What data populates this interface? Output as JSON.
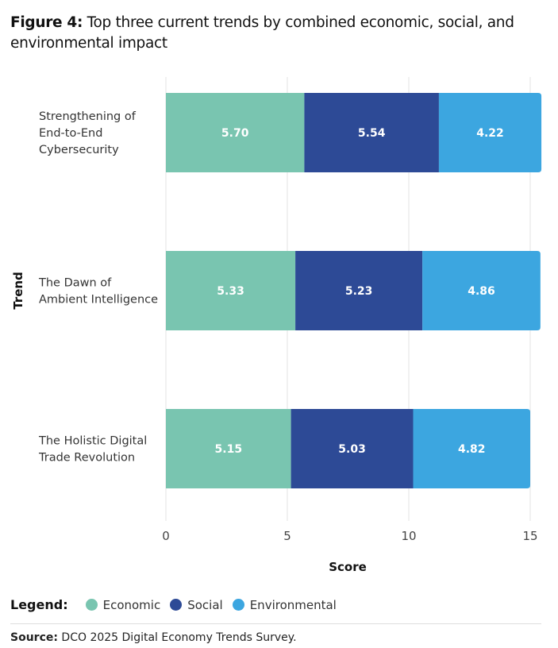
{
  "title_prefix": "Figure 4:",
  "title": "Top three current trends by combined economic, social, and environmental impact",
  "chart_data": {
    "type": "bar",
    "orientation": "horizontal",
    "stacked": true,
    "categories": [
      "Strengthening of End-to-End Cybersecurity",
      "The Dawn of Ambient Intelligence",
      "The Holistic Digital Trade Revolution"
    ],
    "category_lines": [
      [
        "Strengthening of",
        "End-to-End",
        "Cybersecurity"
      ],
      [
        "The Dawn of",
        "Ambient Intelligence"
      ],
      [
        "The Holistic Digital",
        "Trade Revolution"
      ]
    ],
    "series": [
      {
        "name": "Economic",
        "color": "#79c5b0",
        "values": [
          5.7,
          5.33,
          5.15
        ]
      },
      {
        "name": "Social",
        "color": "#2d4a96",
        "values": [
          5.54,
          5.23,
          5.03
        ]
      },
      {
        "name": "Environmental",
        "color": "#3ca6e0",
        "values": [
          4.22,
          4.86,
          4.82
        ]
      }
    ],
    "xlabel": "Score",
    "ylabel": "Trend",
    "xlim": [
      0,
      15.5
    ],
    "xticks": [
      "0",
      "5",
      "10",
      "15"
    ],
    "grid": true,
    "legend_position": "bottom-left"
  },
  "legend_label": "Legend:",
  "source_prefix": "Source:",
  "source": "DCO 2025 Digital Economy Trends Survey."
}
